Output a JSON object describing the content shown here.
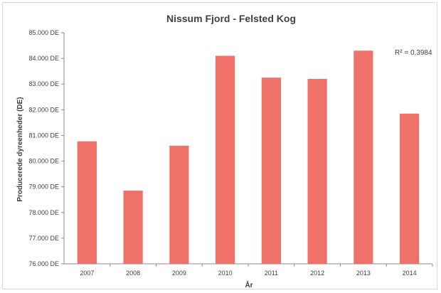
{
  "chart_data": {
    "type": "bar",
    "title": "Nissum Fjord - Felsted Kog",
    "xlabel": "År",
    "ylabel": "Producerede dyreenheder (DE)",
    "categories": [
      "2007",
      "2008",
      "2009",
      "2010",
      "2011",
      "2012",
      "2013",
      "2014"
    ],
    "values": [
      80770,
      78850,
      80600,
      84100,
      83250,
      83200,
      84300,
      81850
    ],
    "ylim": [
      76000,
      85000
    ],
    "yticks": [
      "76.000 DE",
      "77.000 DE",
      "78.000 DE",
      "79.000 DE",
      "80.000 DE",
      "81.000 DE",
      "82.000 DE",
      "83.000 DE",
      "84.000 DE",
      "85.000 DE"
    ],
    "annotation": "R² = 0,3984",
    "grid": false,
    "bar_color": "#f07167"
  }
}
